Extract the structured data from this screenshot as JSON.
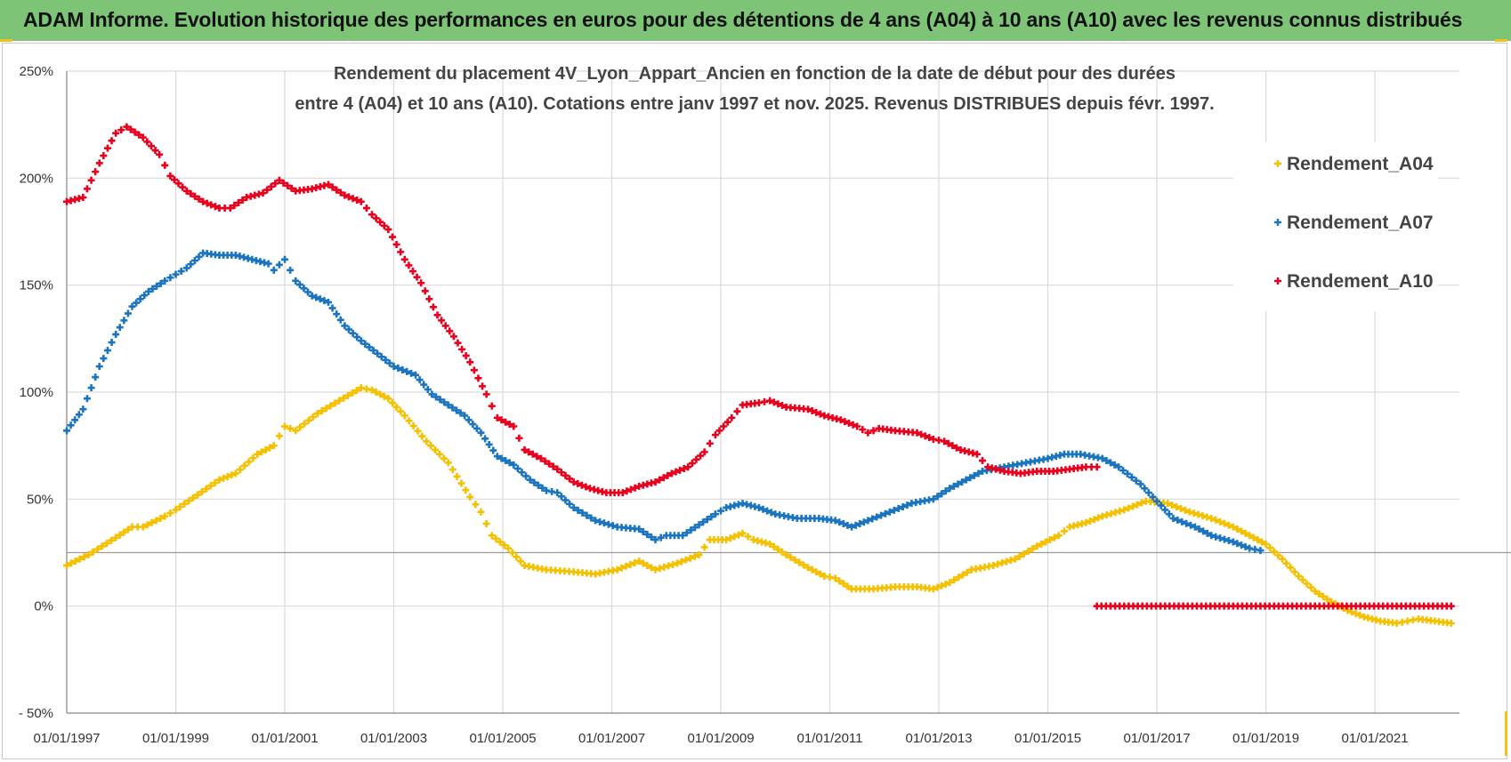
{
  "header": {
    "title": "ADAM Informe. Evolution historique des performances en euros pour des détentions de 4 ans (A04) à 10 ans (A10) avec les revenus connus distribués"
  },
  "colors": {
    "banner": "#7dc477",
    "A04": "#f5c000",
    "A07": "#1a74c0",
    "A10": "#e8001c",
    "grid": "#d9d9d9"
  },
  "chart_data": {
    "type": "scatter",
    "title_lines": [
      "Rendement du placement 4V_Lyon_Appart_Ancien en fonction de la date de début pour des durées",
      "entre 4 (A04) et 10 ans (A10). Cotations entre janv 1997 et nov. 2025. Revenus DISTRIBUES depuis févr. 1997."
    ],
    "xlabel": "",
    "ylabel": "",
    "xlim": [
      1997.0,
      2022.55
    ],
    "ylim": [
      -50,
      250
    ],
    "x_ticks": [
      1997,
      1999,
      2001,
      2003,
      2005,
      2007,
      2009,
      2011,
      2013,
      2015,
      2017,
      2019,
      2021
    ],
    "x_tick_labels": [
      "01/01/1997",
      "01/01/1999",
      "01/01/2001",
      "01/01/2003",
      "01/01/2005",
      "01/01/2007",
      "01/01/2009",
      "01/01/2011",
      "01/01/2013",
      "01/01/2015",
      "01/01/2017",
      "01/01/2019",
      "01/01/2021"
    ],
    "y_ticks": [
      -50,
      0,
      50,
      100,
      150,
      200,
      250
    ],
    "y_tick_labels": [
      "- 50%",
      "0%",
      "50%",
      "100%",
      "150%",
      "200%",
      "250%"
    ],
    "legend_position": "top-right",
    "series": [
      {
        "name": "Rendement_A04",
        "color": "#f5c000",
        "points": [
          [
            1997.0,
            19
          ],
          [
            1997.4,
            24
          ],
          [
            1997.9,
            32
          ],
          [
            1998.2,
            37
          ],
          [
            1998.4,
            37
          ],
          [
            1998.8,
            42
          ],
          [
            1999.0,
            45
          ],
          [
            1999.4,
            52
          ],
          [
            1999.8,
            59
          ],
          [
            2000.1,
            62
          ],
          [
            2000.5,
            71
          ],
          [
            2000.8,
            75
          ],
          [
            2001.0,
            84
          ],
          [
            2001.2,
            82
          ],
          [
            2001.6,
            90
          ],
          [
            2002.0,
            96
          ],
          [
            2002.4,
            102
          ],
          [
            2002.6,
            101
          ],
          [
            2002.9,
            97
          ],
          [
            2003.2,
            89
          ],
          [
            2003.6,
            77
          ],
          [
            2004.0,
            67
          ],
          [
            2004.4,
            51
          ],
          [
            2004.6,
            44
          ],
          [
            2004.8,
            33
          ],
          [
            2005.1,
            27
          ],
          [
            2005.4,
            19
          ],
          [
            2005.8,
            17
          ],
          [
            2006.3,
            16
          ],
          [
            2006.7,
            15
          ],
          [
            2007.1,
            17
          ],
          [
            2007.5,
            21
          ],
          [
            2007.8,
            17
          ],
          [
            2008.2,
            20
          ],
          [
            2008.6,
            24
          ],
          [
            2008.8,
            31
          ],
          [
            2009.1,
            31
          ],
          [
            2009.4,
            34
          ],
          [
            2009.6,
            31
          ],
          [
            2009.9,
            29
          ],
          [
            2010.2,
            24
          ],
          [
            2010.6,
            18
          ],
          [
            2010.9,
            14
          ],
          [
            2011.1,
            13
          ],
          [
            2011.4,
            8
          ],
          [
            2011.8,
            8
          ],
          [
            2012.2,
            9
          ],
          [
            2012.6,
            9
          ],
          [
            2012.9,
            8
          ],
          [
            2013.2,
            11
          ],
          [
            2013.6,
            17
          ],
          [
            2014.0,
            19
          ],
          [
            2014.4,
            22
          ],
          [
            2014.8,
            28
          ],
          [
            2015.2,
            33
          ],
          [
            2015.4,
            37
          ],
          [
            2015.7,
            39
          ],
          [
            2016.0,
            42
          ],
          [
            2016.4,
            45
          ],
          [
            2016.8,
            49
          ],
          [
            2017.2,
            48
          ],
          [
            2017.6,
            44
          ],
          [
            2018.0,
            41
          ],
          [
            2018.4,
            37
          ],
          [
            2018.7,
            33
          ],
          [
            2019.0,
            29
          ],
          [
            2019.3,
            22
          ],
          [
            2019.6,
            14
          ],
          [
            2019.9,
            7
          ],
          [
            2020.2,
            2
          ],
          [
            2020.5,
            -2
          ],
          [
            2020.8,
            -5
          ],
          [
            2021.1,
            -7
          ],
          [
            2021.4,
            -8
          ],
          [
            2021.6,
            -7
          ],
          [
            2021.8,
            -6
          ],
          [
            2022.1,
            -7
          ],
          [
            2022.4,
            -8
          ]
        ]
      },
      {
        "name": "Rendement_A07",
        "color": "#1a74c0",
        "points": [
          [
            1997.0,
            82
          ],
          [
            1997.3,
            92
          ],
          [
            1997.6,
            112
          ],
          [
            1997.9,
            127
          ],
          [
            1998.2,
            140
          ],
          [
            1998.5,
            147
          ],
          [
            1998.8,
            152
          ],
          [
            1999.0,
            155
          ],
          [
            1999.2,
            158
          ],
          [
            1999.5,
            165
          ],
          [
            1999.8,
            164
          ],
          [
            2000.1,
            164
          ],
          [
            2000.4,
            162
          ],
          [
            2000.7,
            160
          ],
          [
            2000.8,
            157
          ],
          [
            2001.0,
            162
          ],
          [
            2001.2,
            152
          ],
          [
            2001.5,
            145
          ],
          [
            2001.8,
            142
          ],
          [
            2002.1,
            131
          ],
          [
            2002.4,
            124
          ],
          [
            2002.7,
            118
          ],
          [
            2003.0,
            112
          ],
          [
            2003.4,
            108
          ],
          [
            2003.7,
            99
          ],
          [
            2004.0,
            94
          ],
          [
            2004.3,
            89
          ],
          [
            2004.6,
            81
          ],
          [
            2004.9,
            70
          ],
          [
            2005.2,
            66
          ],
          [
            2005.5,
            59
          ],
          [
            2005.8,
            54
          ],
          [
            2006.0,
            53
          ],
          [
            2006.3,
            46
          ],
          [
            2006.7,
            40
          ],
          [
            2007.1,
            37
          ],
          [
            2007.5,
            36
          ],
          [
            2007.8,
            31
          ],
          [
            2008.0,
            33
          ],
          [
            2008.3,
            33
          ],
          [
            2008.6,
            38
          ],
          [
            2008.9,
            43
          ],
          [
            2009.1,
            46
          ],
          [
            2009.4,
            48
          ],
          [
            2009.7,
            46
          ],
          [
            2010.0,
            43
          ],
          [
            2010.4,
            41
          ],
          [
            2010.8,
            41
          ],
          [
            2011.1,
            40
          ],
          [
            2011.4,
            37
          ],
          [
            2011.7,
            40
          ],
          [
            2012.1,
            44
          ],
          [
            2012.5,
            48
          ],
          [
            2012.9,
            50
          ],
          [
            2013.2,
            55
          ],
          [
            2013.5,
            59
          ],
          [
            2013.8,
            63
          ],
          [
            2014.2,
            65
          ],
          [
            2014.6,
            67
          ],
          [
            2015.0,
            69
          ],
          [
            2015.3,
            71
          ],
          [
            2015.6,
            71
          ],
          [
            2016.0,
            69
          ],
          [
            2016.3,
            65
          ],
          [
            2016.7,
            57
          ],
          [
            2017.0,
            49
          ],
          [
            2017.3,
            41
          ],
          [
            2017.7,
            37
          ],
          [
            2018.0,
            33
          ],
          [
            2018.4,
            30
          ],
          [
            2018.7,
            27
          ],
          [
            2018.9,
            26
          ]
        ]
      },
      {
        "name": "Rendement_A10",
        "color": "#e8001c",
        "points": [
          [
            1997.0,
            189
          ],
          [
            1997.3,
            191
          ],
          [
            1997.6,
            207
          ],
          [
            1997.9,
            221
          ],
          [
            1998.1,
            224
          ],
          [
            1998.4,
            219
          ],
          [
            1998.7,
            211
          ],
          [
            1998.9,
            201
          ],
          [
            1999.2,
            194
          ],
          [
            1999.5,
            189
          ],
          [
            1999.8,
            186
          ],
          [
            2000.0,
            186
          ],
          [
            2000.3,
            191
          ],
          [
            2000.6,
            193
          ],
          [
            2000.9,
            199
          ],
          [
            2001.2,
            194
          ],
          [
            2001.5,
            195
          ],
          [
            2001.8,
            197
          ],
          [
            2002.1,
            192
          ],
          [
            2002.4,
            189
          ],
          [
            2002.6,
            183
          ],
          [
            2002.9,
            176
          ],
          [
            2003.2,
            162
          ],
          [
            2003.5,
            151
          ],
          [
            2003.8,
            136
          ],
          [
            2004.1,
            126
          ],
          [
            2004.4,
            114
          ],
          [
            2004.7,
            99
          ],
          [
            2004.9,
            88
          ],
          [
            2005.2,
            84
          ],
          [
            2005.4,
            73
          ],
          [
            2005.7,
            69
          ],
          [
            2006.0,
            64
          ],
          [
            2006.3,
            58
          ],
          [
            2006.6,
            55
          ],
          [
            2006.9,
            53
          ],
          [
            2007.2,
            53
          ],
          [
            2007.5,
            56
          ],
          [
            2007.8,
            58
          ],
          [
            2008.1,
            62
          ],
          [
            2008.4,
            65
          ],
          [
            2008.7,
            72
          ],
          [
            2008.9,
            80
          ],
          [
            2009.2,
            88
          ],
          [
            2009.4,
            94
          ],
          [
            2009.7,
            95
          ],
          [
            2009.9,
            96
          ],
          [
            2010.2,
            93
          ],
          [
            2010.6,
            92
          ],
          [
            2010.9,
            89
          ],
          [
            2011.2,
            87
          ],
          [
            2011.5,
            84
          ],
          [
            2011.7,
            81
          ],
          [
            2011.9,
            83
          ],
          [
            2012.2,
            82
          ],
          [
            2012.6,
            81
          ],
          [
            2012.9,
            78
          ],
          [
            2013.1,
            77
          ],
          [
            2013.4,
            73
          ],
          [
            2013.7,
            71
          ],
          [
            2013.9,
            65
          ],
          [
            2014.2,
            63
          ],
          [
            2014.5,
            62
          ],
          [
            2014.8,
            63
          ],
          [
            2015.1,
            63
          ],
          [
            2015.4,
            64
          ],
          [
            2015.7,
            65
          ],
          [
            2015.9,
            65
          ]
        ]
      },
      {
        "name": "Rendement_A10_zero_segment",
        "color": "#e8001c",
        "points": [
          [
            2015.9,
            0
          ],
          [
            2022.4,
            0
          ]
        ]
      }
    ],
    "legend": [
      "Rendement_A04",
      "Rendement_A07",
      "Rendement_A10"
    ]
  }
}
